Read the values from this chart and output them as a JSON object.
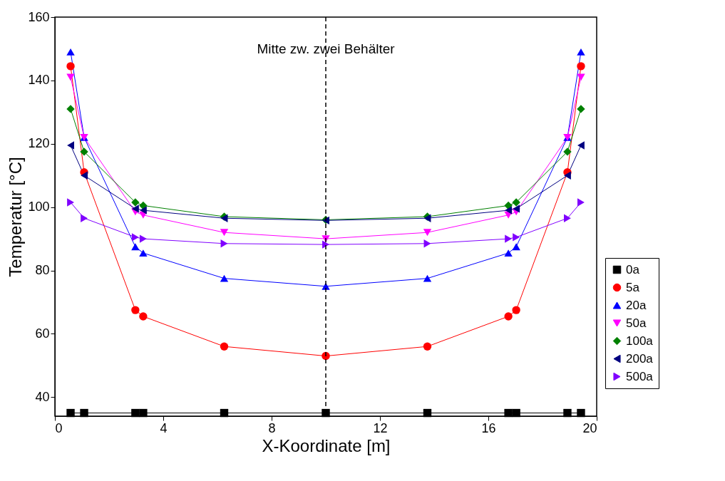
{
  "chart_data": {
    "type": "line",
    "xlabel": "X-Koordinate [m]",
    "ylabel": "Temperatur [°C]",
    "x": [
      0.58,
      1.08,
      2.97,
      3.26,
      6.25,
      10,
      13.75,
      16.74,
      17.03,
      18.92,
      19.42
    ],
    "series": [
      {
        "name": "0a",
        "color": "#000000",
        "marker": "square",
        "values": [
          35,
          35,
          35,
          35,
          35,
          35,
          35,
          35,
          35,
          35,
          35
        ]
      },
      {
        "name": "5a",
        "color": "#ff0000",
        "marker": "circle",
        "values": [
          144.5,
          111,
          67.5,
          65.5,
          56,
          53,
          56,
          65.5,
          67.5,
          111,
          144.5
        ]
      },
      {
        "name": "20a",
        "color": "#0000ff",
        "marker": "triangle-up",
        "values": [
          149,
          122,
          87.5,
          85.5,
          77.5,
          75,
          77.5,
          85.5,
          87.5,
          122,
          149
        ]
      },
      {
        "name": "50a",
        "color": "#ff00ff",
        "marker": "triangle-down",
        "values": [
          141,
          122,
          98.5,
          97.5,
          92,
          90,
          92,
          97.5,
          98.5,
          122,
          141
        ]
      },
      {
        "name": "100a",
        "color": "#008000",
        "marker": "diamond",
        "values": [
          131,
          117.5,
          101.5,
          100.5,
          97,
          96,
          97,
          100.5,
          101.5,
          117.5,
          131
        ]
      },
      {
        "name": "200a",
        "color": "#000080",
        "marker": "triangle-left",
        "values": [
          119.5,
          110,
          99.5,
          99,
          96.5,
          95.8,
          96.5,
          99,
          99.5,
          110,
          119.5
        ]
      },
      {
        "name": "500a",
        "color": "#8000ff",
        "marker": "triangle-right",
        "values": [
          101.5,
          96.5,
          90.5,
          90,
          88.5,
          88.2,
          88.5,
          90,
          90.5,
          96.5,
          101.5
        ]
      }
    ],
    "xlim": [
      0,
      20
    ],
    "xticks": [
      0,
      4,
      8,
      12,
      16,
      20
    ],
    "ylim": [
      34,
      160
    ],
    "yticks": [
      40,
      60,
      80,
      100,
      120,
      140,
      160
    ],
    "ref_lines": [
      {
        "axis": "x",
        "value": 10,
        "label": "Mitte zw. zwei Behälter",
        "color": "#000000",
        "line_style": "dashed"
      }
    ],
    "grid": false,
    "legend": "bottom right",
    "line_style": "solid"
  }
}
